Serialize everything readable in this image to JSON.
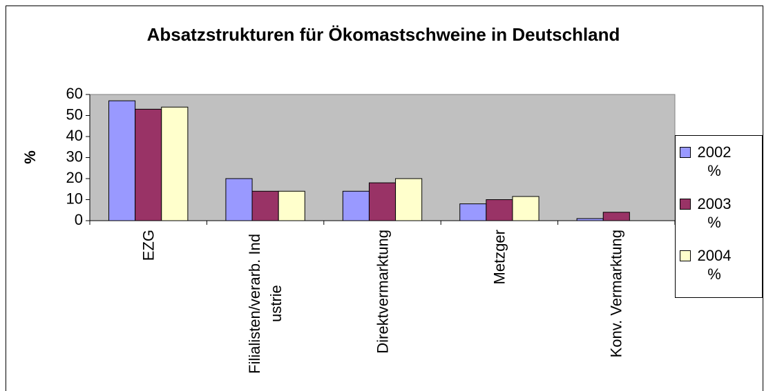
{
  "chart_data": {
    "type": "bar",
    "title": "Absatzstrukturen für Ökomastschweine in Deutschland",
    "y_label": "%",
    "categories": [
      "EZG",
      "Filialisten/verarb. Industrie",
      "Direktvermarktung",
      "Metzger",
      "Konv. Vermarktung"
    ],
    "series": [
      {
        "name": "2002 %",
        "color": "#9999ff",
        "values": [
          57,
          20,
          14,
          8,
          1
        ]
      },
      {
        "name": "2003 %",
        "color": "#993366",
        "values": [
          53,
          14,
          18,
          10,
          4
        ]
      },
      {
        "name": "2004 %",
        "color": "#ffffcc",
        "values": [
          54,
          14,
          20,
          11.5,
          0
        ]
      }
    ],
    "ylim": [
      0,
      60
    ],
    "yticks": [
      0,
      10,
      20,
      30,
      40,
      50,
      60
    ],
    "plot_background": "#c0c0c0",
    "legend": "right"
  }
}
